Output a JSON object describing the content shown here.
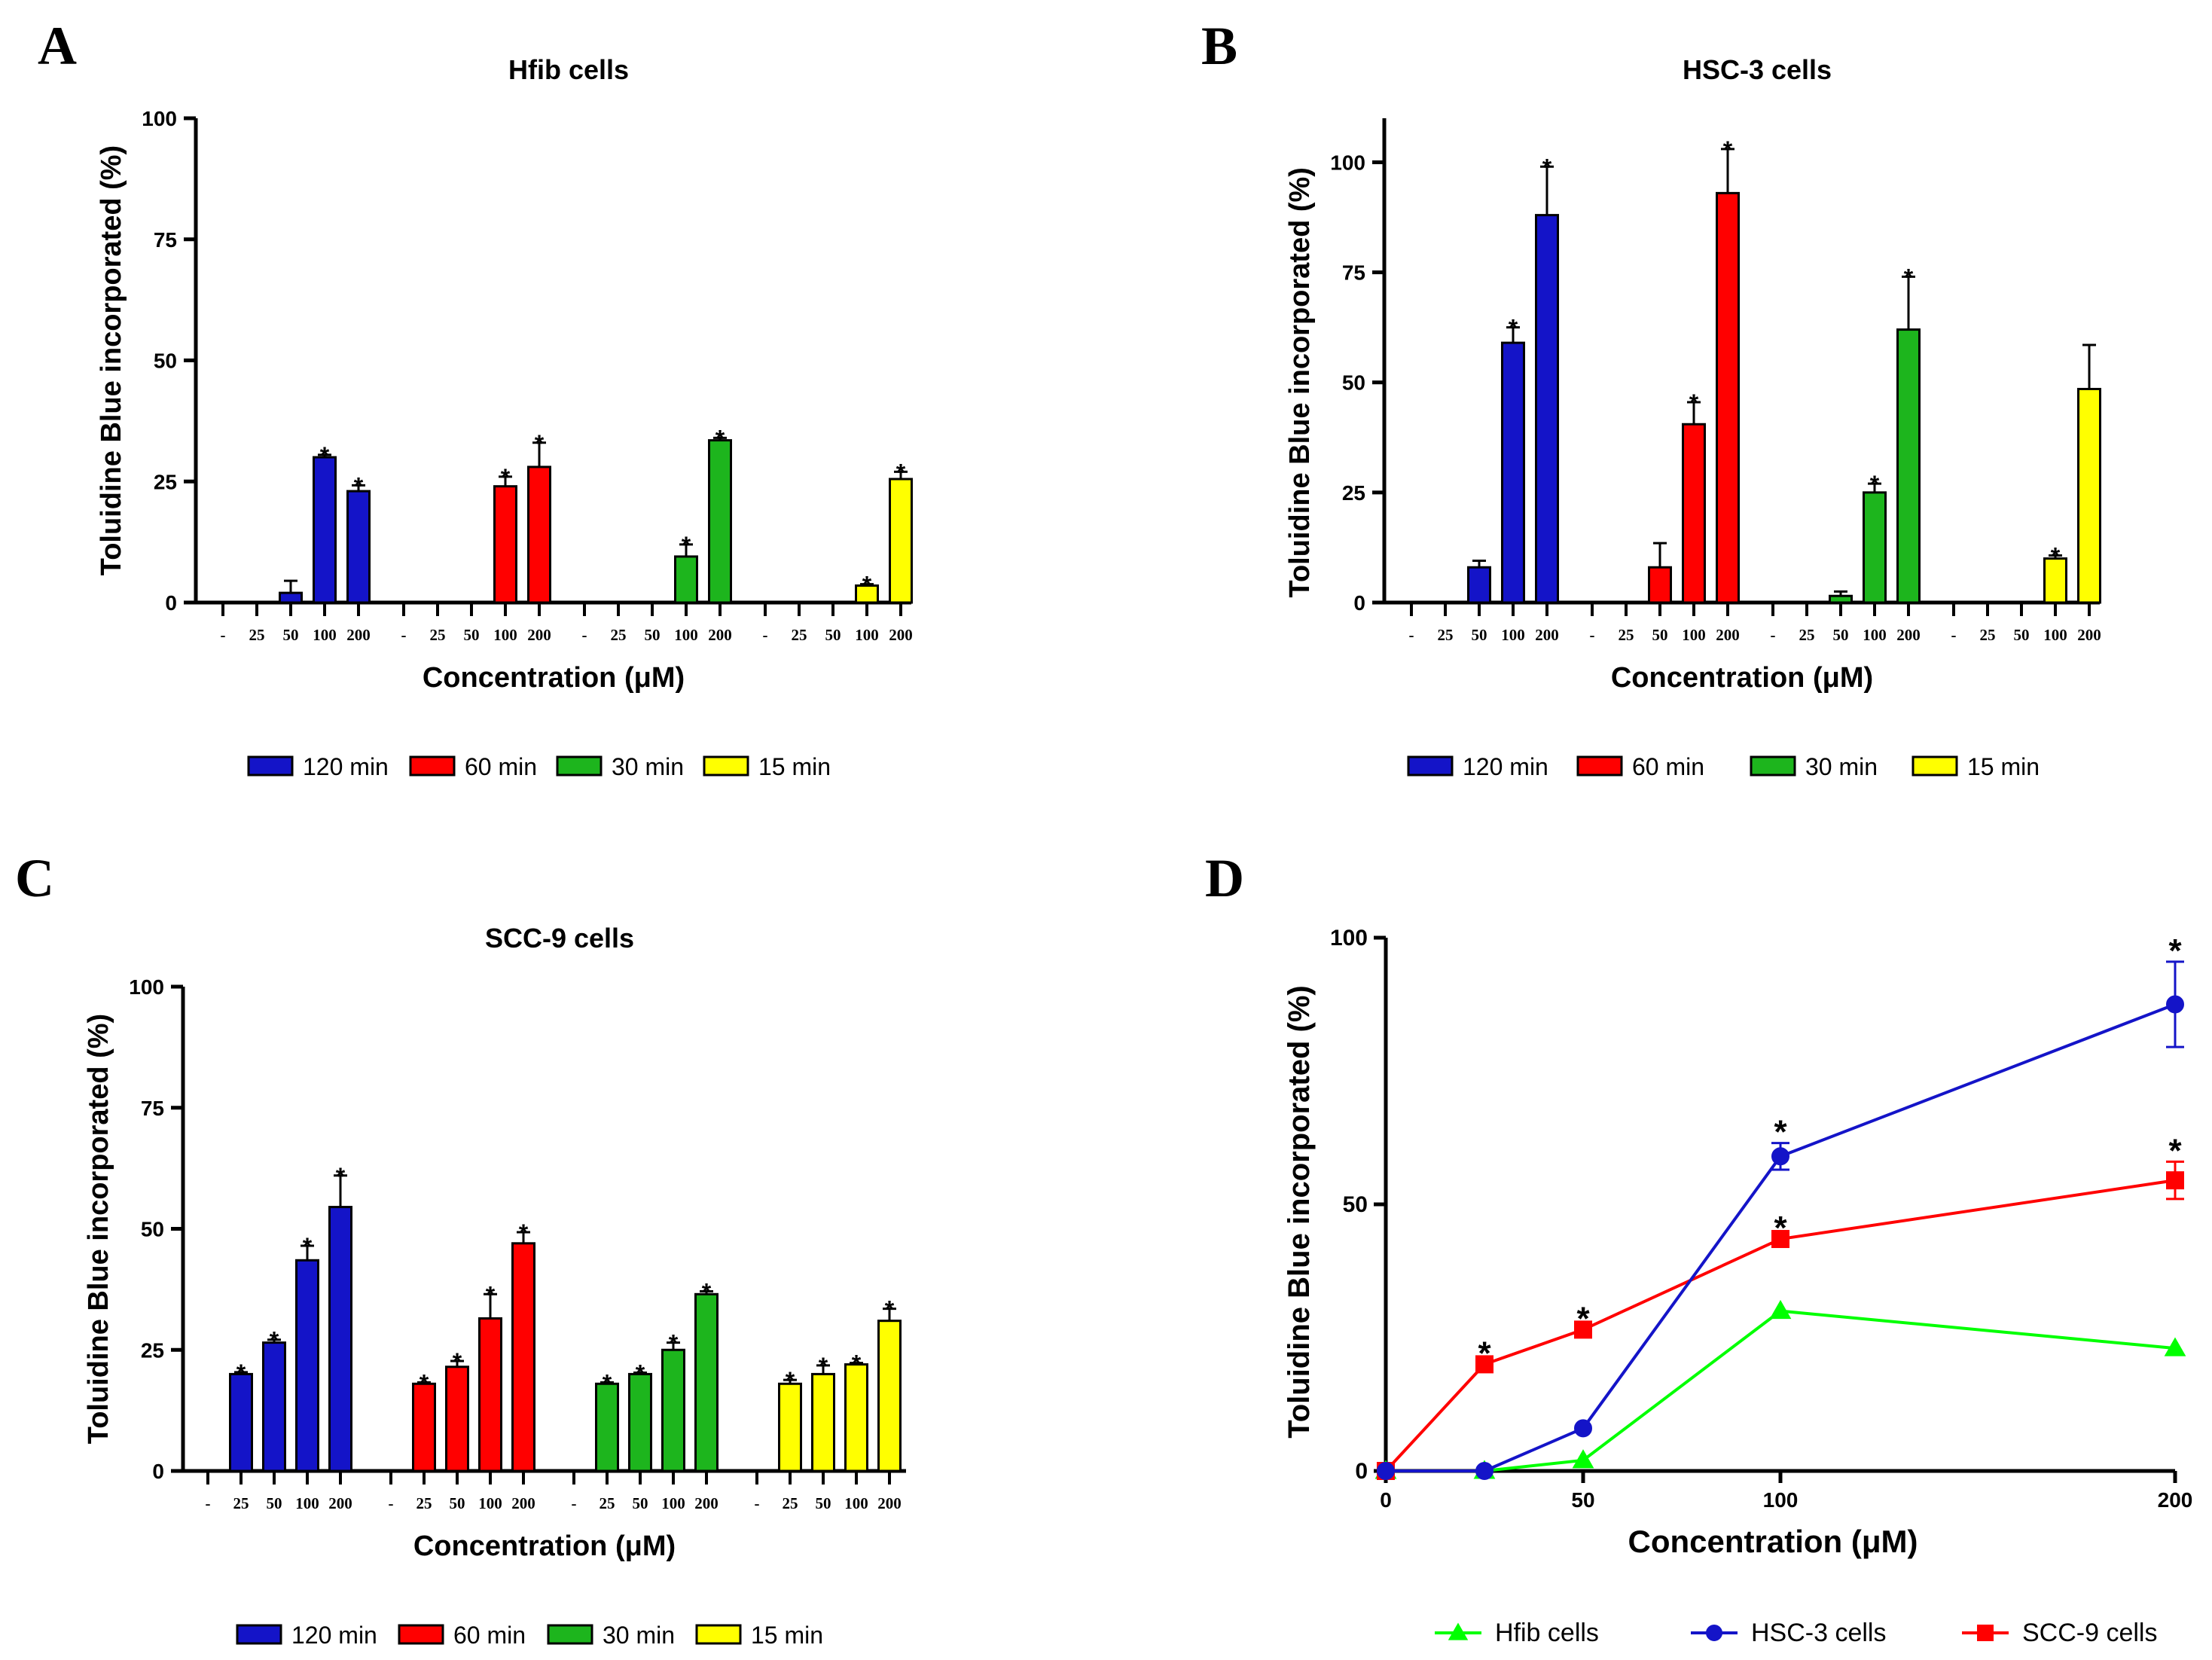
{
  "chart_data": [
    {
      "panel": "A",
      "type": "bar",
      "title": "Hfib cells",
      "xlabel": "Concentration (μM)",
      "ylabel": "Toluidine Blue incorporated  (%)",
      "ylim": [
        0,
        100
      ],
      "yticks": [
        "0",
        "25",
        "50",
        "75",
        "100"
      ],
      "categories": [
        "-",
        "25",
        "50",
        "100",
        "200"
      ],
      "series": [
        {
          "name": "120 min",
          "color": "#1414c8",
          "values": [
            0,
            0,
            2,
            30,
            23
          ],
          "errors": [
            0,
            0,
            2.5,
            0.5,
            1.2
          ],
          "sig": [
            false,
            false,
            false,
            true,
            true
          ]
        },
        {
          "name": "60 min",
          "color": "#ff0000",
          "values": [
            0,
            0,
            0,
            24,
            28
          ],
          "errors": [
            0,
            0,
            0,
            2.0,
            5.0
          ],
          "sig": [
            false,
            false,
            false,
            true,
            true
          ]
        },
        {
          "name": "30 min",
          "color": "#1db51d",
          "values": [
            0,
            0,
            0,
            9.5,
            33.5
          ],
          "errors": [
            0,
            0,
            0,
            2.5,
            0.5
          ],
          "sig": [
            false,
            false,
            false,
            true,
            true
          ]
        },
        {
          "name": "15 min",
          "color": "#ffff00",
          "values": [
            0,
            0,
            0,
            3.5,
            25.5
          ],
          "errors": [
            0,
            0,
            0,
            0.3,
            1.5
          ],
          "sig": [
            false,
            false,
            false,
            true,
            true
          ]
        }
      ]
    },
    {
      "panel": "B",
      "type": "bar",
      "title": "HSC-3 cells",
      "xlabel": "Concentration (μM)",
      "ylabel": "Toluidine Blue incorporated  (%)",
      "ylim": [
        0,
        110
      ],
      "yticks": [
        "0",
        "25",
        "50",
        "75",
        "100"
      ],
      "categories": [
        "-",
        "25",
        "50",
        "100",
        "200"
      ],
      "series": [
        {
          "name": "120 min",
          "color": "#1414c8",
          "values": [
            0,
            0,
            8,
            59,
            88
          ],
          "errors": [
            0,
            0,
            1.5,
            3.5,
            11
          ],
          "sig": [
            false,
            false,
            false,
            true,
            true
          ]
        },
        {
          "name": "60 min",
          "color": "#ff0000",
          "values": [
            0,
            0,
            8,
            40.5,
            93
          ],
          "errors": [
            0,
            0,
            5.5,
            5,
            10
          ],
          "sig": [
            false,
            false,
            false,
            true,
            true
          ]
        },
        {
          "name": "30 min",
          "color": "#1db51d",
          "values": [
            0,
            0,
            1.5,
            25,
            62
          ],
          "errors": [
            0,
            0,
            1,
            2,
            12
          ],
          "sig": [
            false,
            false,
            false,
            true,
            true
          ]
        },
        {
          "name": "15 min",
          "color": "#ffff00",
          "values": [
            0,
            0,
            0,
            10,
            48.5
          ],
          "errors": [
            0,
            0,
            0,
            0.7,
            10
          ],
          "sig": [
            false,
            false,
            false,
            true,
            false
          ]
        }
      ]
    },
    {
      "panel": "C",
      "type": "bar",
      "title": "SCC-9 cells",
      "xlabel": "Concentration (μM)",
      "ylabel": "Toluidine Blue incorporated  (%)",
      "ylim": [
        0,
        100
      ],
      "yticks": [
        "0",
        "25",
        "50",
        "75",
        "100"
      ],
      "categories": [
        "-",
        "25",
        "50",
        "100",
        "200"
      ],
      "series": [
        {
          "name": "120 min",
          "color": "#1414c8",
          "values": [
            0,
            20,
            26.5,
            43.5,
            54.5
          ],
          "errors": [
            0,
            0.4,
            0.6,
            3,
            6.5
          ],
          "sig": [
            false,
            true,
            true,
            true,
            true
          ]
        },
        {
          "name": "60 min",
          "color": "#ff0000",
          "values": [
            0,
            18,
            21.5,
            31.5,
            47
          ],
          "errors": [
            0,
            0.3,
            1.2,
            5,
            2.3
          ],
          "sig": [
            false,
            true,
            true,
            true,
            true
          ]
        },
        {
          "name": "30 min",
          "color": "#1db51d",
          "values": [
            0,
            18,
            20,
            25,
            36.5
          ],
          "errors": [
            0,
            0.3,
            0.3,
            1.5,
            0.6
          ],
          "sig": [
            false,
            true,
            true,
            true,
            true
          ]
        },
        {
          "name": "15 min",
          "color": "#ffff00",
          "values": [
            0,
            18,
            20,
            22,
            31
          ],
          "errors": [
            0,
            0.8,
            1.8,
            0.3,
            2.5
          ],
          "sig": [
            false,
            true,
            true,
            true,
            true
          ]
        }
      ]
    },
    {
      "panel": "D",
      "type": "line",
      "title": "",
      "xlabel": "Concentration (μM)",
      "ylabel": "Toluidine Blue incorporated  (%)",
      "xlim": [
        0,
        200
      ],
      "ylim": [
        0,
        100
      ],
      "xticks": [
        "0",
        "50",
        "100",
        "200"
      ],
      "yticks": [
        "0",
        "50",
        "100"
      ],
      "x": [
        0,
        25,
        50,
        100,
        200
      ],
      "series": [
        {
          "name": "Hfib cells",
          "color": "#00ff00",
          "marker": "triangle",
          "values": [
            0,
            0,
            2,
            30,
            23
          ],
          "errors": [
            0,
            0,
            0,
            0,
            0
          ],
          "sig": [
            false,
            false,
            false,
            false,
            false
          ]
        },
        {
          "name": "HSC-3 cells",
          "color": "#1414c8",
          "marker": "circle",
          "values": [
            0,
            0,
            8,
            59,
            87.5
          ],
          "errors": [
            0,
            0,
            0,
            2.5,
            8
          ],
          "sig": [
            false,
            false,
            false,
            true,
            true
          ]
        },
        {
          "name": "SCC-9 cells",
          "color": "#ff0000",
          "marker": "square",
          "values": [
            0,
            20,
            26.5,
            43.5,
            54.5
          ],
          "errors": [
            0,
            0,
            0,
            0,
            3.5
          ],
          "sig": [
            false,
            true,
            true,
            true,
            true
          ]
        }
      ]
    }
  ],
  "panel_labels": [
    "A",
    "B",
    "C",
    "D"
  ],
  "sig_symbol": "*"
}
